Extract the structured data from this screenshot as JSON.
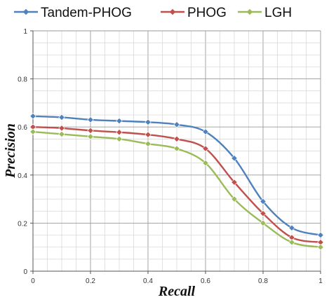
{
  "chart_data": {
    "type": "line",
    "title": "",
    "xlabel": "Recall",
    "ylabel": "Precision",
    "xlim": [
      0,
      1
    ],
    "ylim": [
      0,
      1
    ],
    "x_ticks": [
      "0",
      "0.2",
      "0.4",
      "0.6",
      "0.8",
      "1"
    ],
    "y_ticks": [
      "0",
      "0.2",
      "0.4",
      "0.6",
      "0.8",
      "1"
    ],
    "grid": true,
    "legend_position": "top",
    "x": [
      0,
      0.1,
      0.2,
      0.3,
      0.4,
      0.5,
      0.6,
      0.7,
      0.8,
      0.9,
      1.0
    ],
    "series": [
      {
        "name": "Tandem-PHOG",
        "color": "#4f81bd",
        "marker": "diamond",
        "values": [
          0.645,
          0.64,
          0.63,
          0.625,
          0.62,
          0.61,
          0.58,
          0.47,
          0.29,
          0.18,
          0.15
        ]
      },
      {
        "name": "PHOG",
        "color": "#c0504d",
        "marker": "diamond",
        "values": [
          0.6,
          0.595,
          0.585,
          0.578,
          0.568,
          0.55,
          0.51,
          0.37,
          0.24,
          0.14,
          0.12
        ]
      },
      {
        "name": "LGH",
        "color": "#9bbb59",
        "marker": "diamond",
        "values": [
          0.58,
          0.57,
          0.56,
          0.55,
          0.53,
          0.51,
          0.45,
          0.3,
          0.2,
          0.12,
          0.1
        ]
      }
    ]
  }
}
